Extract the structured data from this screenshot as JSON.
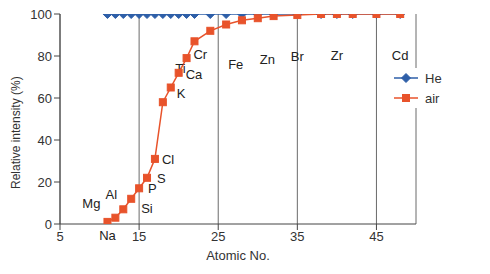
{
  "chart_data": {
    "type": "line",
    "x_label": "Atomic No.",
    "y_label": "Relative intensity (%)",
    "x": [
      11,
      12,
      13,
      14,
      15,
      16,
      17,
      18,
      19,
      20,
      21,
      22,
      24,
      26,
      28,
      30,
      32,
      35,
      38,
      40,
      42,
      45,
      48
    ],
    "series": [
      {
        "name": "He",
        "color": "#2e5fa8",
        "marker": "diamond",
        "values": [
          100,
          100,
          100,
          100,
          100,
          100,
          100,
          100,
          100,
          100,
          100,
          100,
          100,
          100,
          100,
          100,
          100,
          100,
          100,
          100,
          100,
          100,
          100
        ]
      },
      {
        "name": "air",
        "color": "#e8532b",
        "marker": "square",
        "values": [
          1,
          3,
          7,
          12,
          17,
          22,
          31,
          58,
          65,
          72,
          79,
          87,
          92,
          95,
          97,
          98,
          99,
          99.5,
          100,
          100,
          100,
          100,
          100
        ]
      }
    ],
    "annotations": [
      {
        "text": "Na",
        "x": 11,
        "y": 1
      },
      {
        "text": "Mg",
        "x": 12,
        "y": 3
      },
      {
        "text": "Al",
        "x": 13,
        "y": 7
      },
      {
        "text": "Si",
        "x": 14,
        "y": 12
      },
      {
        "text": "P",
        "x": 15,
        "y": 17
      },
      {
        "text": "S",
        "x": 16,
        "y": 22
      },
      {
        "text": "Cl",
        "x": 17,
        "y": 31
      },
      {
        "text": "K",
        "x": 19,
        "y": 65
      },
      {
        "text": "Ca",
        "x": 20,
        "y": 72
      },
      {
        "text": "Ti",
        "x": 22,
        "y": 87
      },
      {
        "text": "Cr",
        "x": 24,
        "y": 92
      },
      {
        "text": "Fe",
        "x": 26,
        "y": 95
      },
      {
        "text": "Zn",
        "x": 30,
        "y": 98
      },
      {
        "text": "Br",
        "x": 35,
        "y": 99.5
      },
      {
        "text": "Zr",
        "x": 40,
        "y": 100
      },
      {
        "text": "Cd",
        "x": 48,
        "y": 100
      }
    ],
    "xlim": [
      5,
      50
    ],
    "xticks": [
      5,
      15,
      25,
      35,
      45
    ],
    "ylim": [
      0,
      100
    ],
    "yticks": [
      0,
      20,
      40,
      60,
      80,
      100
    ],
    "grid": true,
    "legend": "upper right"
  }
}
